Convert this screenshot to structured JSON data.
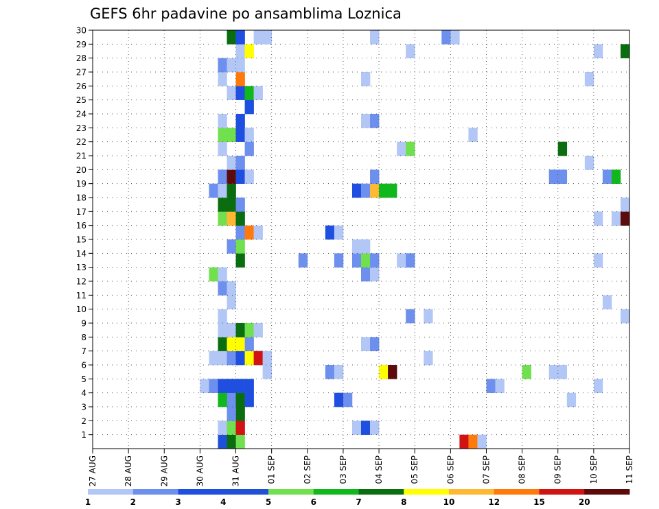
{
  "chart_data": {
    "type": "heatmap",
    "title": "GEFS 6hr padavine po ansamblima Loznica",
    "x_tick_labels": [
      "27 AUG",
      "28 AUG",
      "29 AUG",
      "30 AUG",
      "31 AUG",
      "01 SEP",
      "02 SEP",
      "03 SEP",
      "04 SEP",
      "05 SEP",
      "06 SEP",
      "07 SEP",
      "08 SEP",
      "09 SEP",
      "10 SEP",
      "11 SEP"
    ],
    "x_range": [
      "27 AUG 00Z",
      "11 SEP 00Z"
    ],
    "x_step": "6hr",
    "y_tick_labels": [
      1,
      2,
      3,
      4,
      5,
      6,
      7,
      8,
      9,
      10,
      11,
      12,
      13,
      14,
      15,
      16,
      17,
      18,
      19,
      20,
      21,
      22,
      23,
      24,
      25,
      26,
      27,
      28,
      29,
      30
    ],
    "y_range": [
      0,
      30
    ],
    "grid": true,
    "colorbar": {
      "labels": [
        "1",
        "2",
        "3",
        "4",
        "5",
        "6",
        "7",
        "8",
        "10",
        "12",
        "15",
        "20"
      ],
      "colors": [
        "#b3c7f7",
        "#6d8fee",
        "#1f4fe0",
        "#2050d8",
        "#70e04f",
        "#10b81c",
        "#0a6e10",
        "#ffff00",
        "#ffb833",
        "#ff7a0a",
        "#d01414",
        "#5c0a0a"
      ]
    },
    "cells": [
      {
        "t": 14,
        "m": 0,
        "c": 3
      },
      {
        "t": 15,
        "m": 0,
        "c": 6
      },
      {
        "t": 16,
        "m": 0,
        "c": 4
      },
      {
        "t": 41,
        "m": 0,
        "c": 10
      },
      {
        "t": 42,
        "m": 0,
        "c": 9
      },
      {
        "t": 43,
        "m": 0,
        "c": 0
      },
      {
        "t": 14,
        "m": 1,
        "c": 0
      },
      {
        "t": 15,
        "m": 1,
        "c": 4
      },
      {
        "t": 16,
        "m": 1,
        "c": 10
      },
      {
        "t": 29,
        "m": 1,
        "c": 0
      },
      {
        "t": 30,
        "m": 1,
        "c": 2
      },
      {
        "t": 31,
        "m": 1,
        "c": 0
      },
      {
        "t": 16,
        "m": 2,
        "c": 6
      },
      {
        "t": 15,
        "m": 2,
        "c": 1
      },
      {
        "t": 15,
        "m": 3,
        "c": 1
      },
      {
        "t": 16,
        "m": 3,
        "c": 6
      },
      {
        "t": 14,
        "m": 3,
        "c": 5
      },
      {
        "t": 17,
        "m": 3,
        "c": 2
      },
      {
        "t": 27,
        "m": 3,
        "c": 2
      },
      {
        "t": 28,
        "m": 3,
        "c": 1
      },
      {
        "t": 53,
        "m": 3,
        "c": 0
      },
      {
        "t": 12,
        "m": 4,
        "c": 0
      },
      {
        "t": 13,
        "m": 4,
        "c": 1
      },
      {
        "t": 14,
        "m": 4,
        "c": 2
      },
      {
        "t": 15,
        "m": 4,
        "c": 2
      },
      {
        "t": 16,
        "m": 4,
        "c": 2
      },
      {
        "t": 17,
        "m": 4,
        "c": 2
      },
      {
        "t": 44,
        "m": 4,
        "c": 1
      },
      {
        "t": 45,
        "m": 4,
        "c": 0
      },
      {
        "t": 56,
        "m": 4,
        "c": 0
      },
      {
        "t": 19,
        "m": 5,
        "c": 0
      },
      {
        "t": 26,
        "m": 5,
        "c": 1
      },
      {
        "t": 27,
        "m": 5,
        "c": 0
      },
      {
        "t": 32,
        "m": 5,
        "c": 7
      },
      {
        "t": 33,
        "m": 5,
        "c": 11
      },
      {
        "t": 48,
        "m": 5,
        "c": 4
      },
      {
        "t": 51,
        "m": 5,
        "c": 0
      },
      {
        "t": 52,
        "m": 5,
        "c": 0
      },
      {
        "t": 13,
        "m": 6,
        "c": 0
      },
      {
        "t": 14,
        "m": 6,
        "c": 0
      },
      {
        "t": 15,
        "m": 6,
        "c": 1
      },
      {
        "t": 16,
        "m": 6,
        "c": 2
      },
      {
        "t": 17,
        "m": 6,
        "c": 7
      },
      {
        "t": 18,
        "m": 6,
        "c": 10
      },
      {
        "t": 19,
        "m": 6,
        "c": 0
      },
      {
        "t": 37,
        "m": 6,
        "c": 0
      },
      {
        "t": 14,
        "m": 7,
        "c": 6
      },
      {
        "t": 15,
        "m": 7,
        "c": 7
      },
      {
        "t": 16,
        "m": 7,
        "c": 7
      },
      {
        "t": 17,
        "m": 7,
        "c": 1
      },
      {
        "t": 30,
        "m": 7,
        "c": 0
      },
      {
        "t": 31,
        "m": 7,
        "c": 1
      },
      {
        "t": 14,
        "m": 8,
        "c": 0
      },
      {
        "t": 15,
        "m": 8,
        "c": 0
      },
      {
        "t": 16,
        "m": 8,
        "c": 6
      },
      {
        "t": 17,
        "m": 8,
        "c": 4
      },
      {
        "t": 18,
        "m": 8,
        "c": 0
      },
      {
        "t": 14,
        "m": 9,
        "c": 0
      },
      {
        "t": 35,
        "m": 9,
        "c": 1
      },
      {
        "t": 37,
        "m": 9,
        "c": 0
      },
      {
        "t": 59,
        "m": 9,
        "c": 0
      },
      {
        "t": 15,
        "m": 10,
        "c": 0
      },
      {
        "t": 57,
        "m": 10,
        "c": 0
      },
      {
        "t": 14,
        "m": 11,
        "c": 1
      },
      {
        "t": 15,
        "m": 11,
        "c": 0
      },
      {
        "t": 13,
        "m": 12,
        "c": 4
      },
      {
        "t": 14,
        "m": 12,
        "c": 0
      },
      {
        "t": 30,
        "m": 12,
        "c": 1
      },
      {
        "t": 31,
        "m": 12,
        "c": 0
      },
      {
        "t": 16,
        "m": 13,
        "c": 6
      },
      {
        "t": 23,
        "m": 13,
        "c": 1
      },
      {
        "t": 27,
        "m": 13,
        "c": 1
      },
      {
        "t": 29,
        "m": 13,
        "c": 1
      },
      {
        "t": 30,
        "m": 13,
        "c": 4
      },
      {
        "t": 31,
        "m": 13,
        "c": 1
      },
      {
        "t": 34,
        "m": 13,
        "c": 0
      },
      {
        "t": 35,
        "m": 13,
        "c": 1
      },
      {
        "t": 56,
        "m": 13,
        "c": 0
      },
      {
        "t": 15,
        "m": 14,
        "c": 1
      },
      {
        "t": 16,
        "m": 14,
        "c": 4
      },
      {
        "t": 29,
        "m": 14,
        "c": 0
      },
      {
        "t": 30,
        "m": 14,
        "c": 0
      },
      {
        "t": 16,
        "m": 15,
        "c": 1
      },
      {
        "t": 17,
        "m": 15,
        "c": 9
      },
      {
        "t": 18,
        "m": 15,
        "c": 0
      },
      {
        "t": 26,
        "m": 15,
        "c": 2
      },
      {
        "t": 27,
        "m": 15,
        "c": 0
      },
      {
        "t": 14,
        "m": 16,
        "c": 4
      },
      {
        "t": 15,
        "m": 16,
        "c": 8
      },
      {
        "t": 16,
        "m": 16,
        "c": 6
      },
      {
        "t": 56,
        "m": 16,
        "c": 0
      },
      {
        "t": 58,
        "m": 16,
        "c": 0
      },
      {
        "t": 59,
        "m": 16,
        "c": 11
      },
      {
        "t": 14,
        "m": 17,
        "c": 6
      },
      {
        "t": 15,
        "m": 17,
        "c": 6
      },
      {
        "t": 16,
        "m": 17,
        "c": 1
      },
      {
        "t": 59,
        "m": 17,
        "c": 0
      },
      {
        "t": 13,
        "m": 18,
        "c": 1
      },
      {
        "t": 14,
        "m": 18,
        "c": 0
      },
      {
        "t": 15,
        "m": 18,
        "c": 6
      },
      {
        "t": 29,
        "m": 18,
        "c": 2
      },
      {
        "t": 30,
        "m": 18,
        "c": 1
      },
      {
        "t": 31,
        "m": 18,
        "c": 8
      },
      {
        "t": 32,
        "m": 18,
        "c": 5
      },
      {
        "t": 33,
        "m": 18,
        "c": 5
      },
      {
        "t": 14,
        "m": 19,
        "c": 1
      },
      {
        "t": 15,
        "m": 19,
        "c": 11
      },
      {
        "t": 16,
        "m": 19,
        "c": 2
      },
      {
        "t": 17,
        "m": 19,
        "c": 0
      },
      {
        "t": 31,
        "m": 19,
        "c": 1
      },
      {
        "t": 51,
        "m": 19,
        "c": 1
      },
      {
        "t": 52,
        "m": 19,
        "c": 1
      },
      {
        "t": 57,
        "m": 19,
        "c": 1
      },
      {
        "t": 58,
        "m": 19,
        "c": 5
      },
      {
        "t": 15,
        "m": 20,
        "c": 0
      },
      {
        "t": 16,
        "m": 20,
        "c": 1
      },
      {
        "t": 55,
        "m": 20,
        "c": 0
      },
      {
        "t": 14,
        "m": 21,
        "c": 0
      },
      {
        "t": 17,
        "m": 21,
        "c": 1
      },
      {
        "t": 34,
        "m": 21,
        "c": 0
      },
      {
        "t": 35,
        "m": 21,
        "c": 4
      },
      {
        "t": 52,
        "m": 21,
        "c": 6
      },
      {
        "t": 14,
        "m": 22,
        "c": 4
      },
      {
        "t": 15,
        "m": 22,
        "c": 4
      },
      {
        "t": 16,
        "m": 22,
        "c": 2
      },
      {
        "t": 17,
        "m": 22,
        "c": 0
      },
      {
        "t": 42,
        "m": 22,
        "c": 0
      },
      {
        "t": 14,
        "m": 23,
        "c": 0
      },
      {
        "t": 16,
        "m": 23,
        "c": 2
      },
      {
        "t": 30,
        "m": 23,
        "c": 0
      },
      {
        "t": 31,
        "m": 23,
        "c": 1
      },
      {
        "t": 17,
        "m": 24,
        "c": 2
      },
      {
        "t": 15,
        "m": 25,
        "c": 0
      },
      {
        "t": 16,
        "m": 25,
        "c": 2
      },
      {
        "t": 17,
        "m": 25,
        "c": 5
      },
      {
        "t": 18,
        "m": 25,
        "c": 0
      },
      {
        "t": 14,
        "m": 26,
        "c": 0
      },
      {
        "t": 16,
        "m": 26,
        "c": 9
      },
      {
        "t": 30,
        "m": 26,
        "c": 0
      },
      {
        "t": 55,
        "m": 26,
        "c": 0
      },
      {
        "t": 14,
        "m": 27,
        "c": 1
      },
      {
        "t": 15,
        "m": 27,
        "c": 0
      },
      {
        "t": 16,
        "m": 27,
        "c": 0
      },
      {
        "t": 16,
        "m": 28,
        "c": 0
      },
      {
        "t": 17,
        "m": 28,
        "c": 7
      },
      {
        "t": 35,
        "m": 28,
        "c": 0
      },
      {
        "t": 56,
        "m": 28,
        "c": 0
      },
      {
        "t": 59,
        "m": 28,
        "c": 6
      },
      {
        "t": 60,
        "m": 28,
        "c": 0
      },
      {
        "t": 15,
        "m": 29,
        "c": 6
      },
      {
        "t": 16,
        "m": 29,
        "c": 2
      },
      {
        "t": 18,
        "m": 29,
        "c": 0
      },
      {
        "t": 19,
        "m": 29,
        "c": 0
      },
      {
        "t": 31,
        "m": 29,
        "c": 0
      },
      {
        "t": 39,
        "m": 29,
        "c": 1
      },
      {
        "t": 40,
        "m": 29,
        "c": 0
      },
      {
        "t": 60,
        "m": 29,
        "c": 2
      }
    ]
  }
}
